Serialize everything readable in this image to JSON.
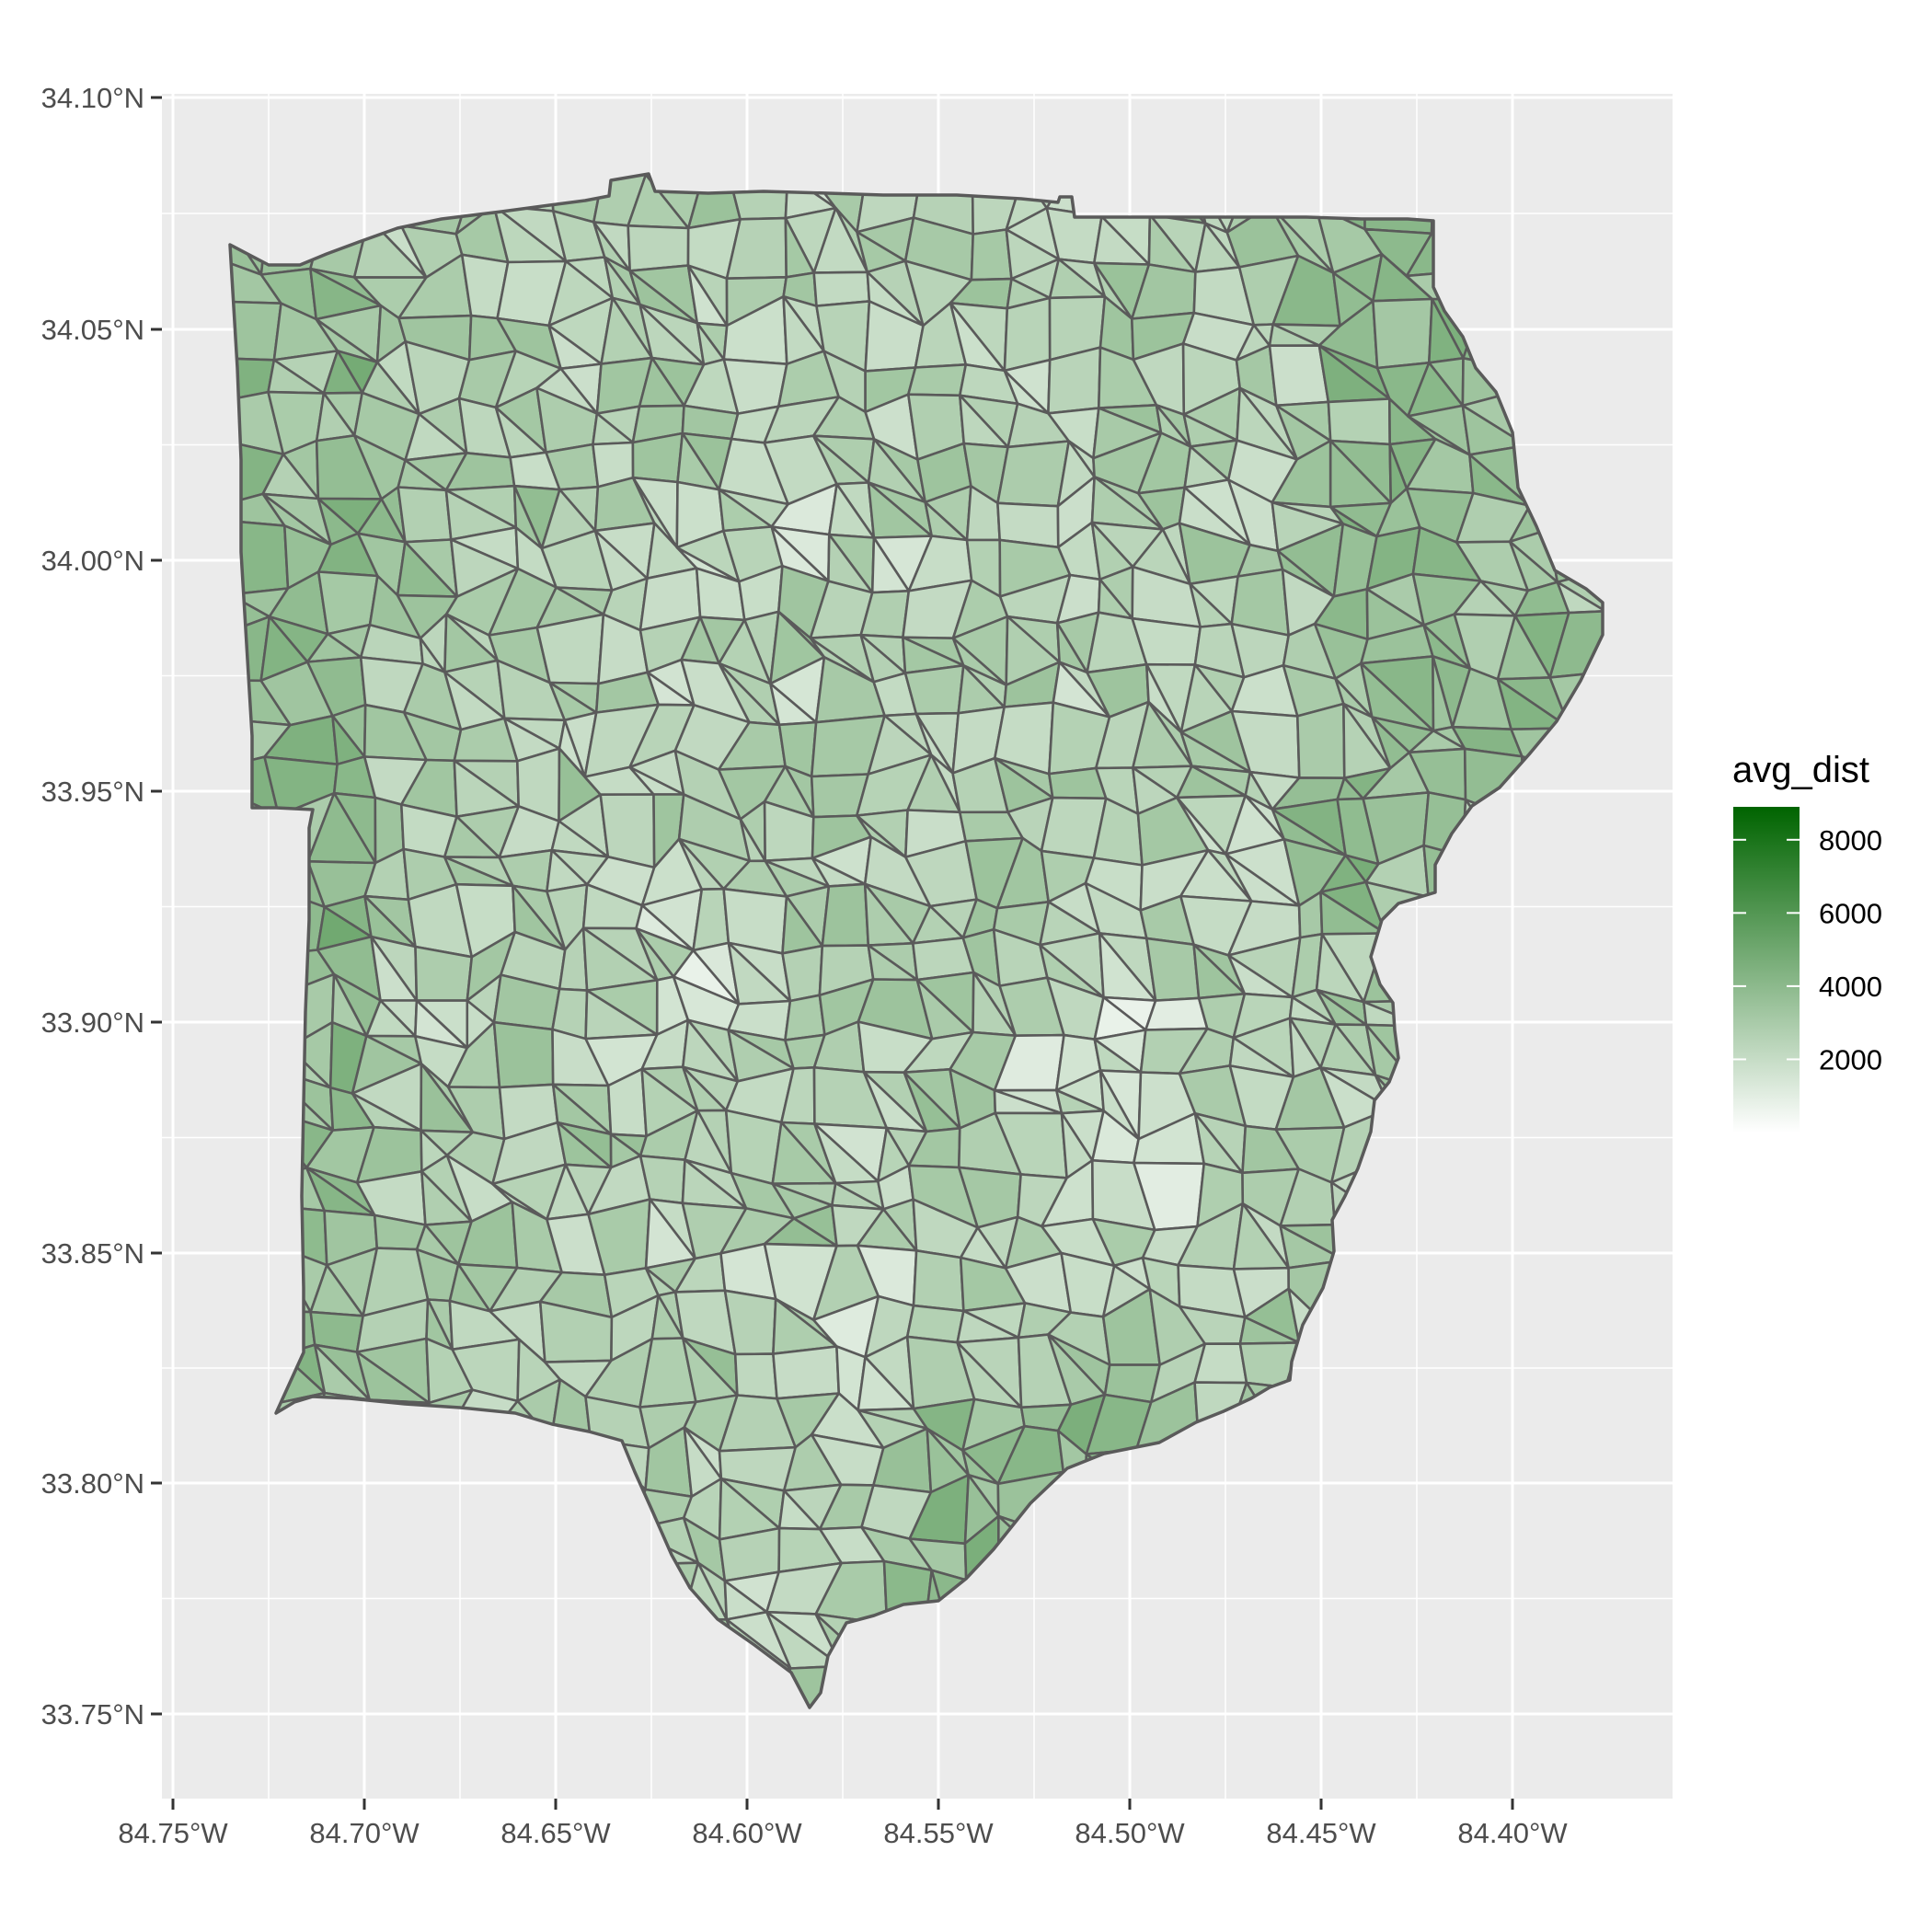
{
  "map": {
    "type": "choropleth",
    "y_ticks": [
      "34.10°N",
      "34.05°N",
      "34.00°N",
      "33.95°N",
      "33.90°N",
      "33.85°N",
      "33.80°N",
      "33.75°N"
    ],
    "x_ticks": [
      "84.75°W",
      "84.70°W",
      "84.65°W",
      "84.60°W",
      "84.55°W",
      "84.50°W",
      "84.45°W",
      "84.40°W"
    ],
    "lat_range": [
      33.733,
      34.105
    ],
    "lon_range": [
      -84.758,
      -84.366
    ],
    "panel_background": "#ebebeb",
    "grid_color": "#ffffff",
    "region_stroke": "#5a5a5a",
    "value_note": "avg_dist per tract estimated from shading",
    "legend": {
      "title": "avg_dist",
      "ticks": [
        "8000",
        "6000",
        "4000",
        "2000"
      ],
      "tick_values": [
        8000,
        6000,
        4000,
        2000
      ],
      "range": [
        0,
        8900
      ],
      "color_low": "#ffffff",
      "color_high": "#006400"
    }
  }
}
